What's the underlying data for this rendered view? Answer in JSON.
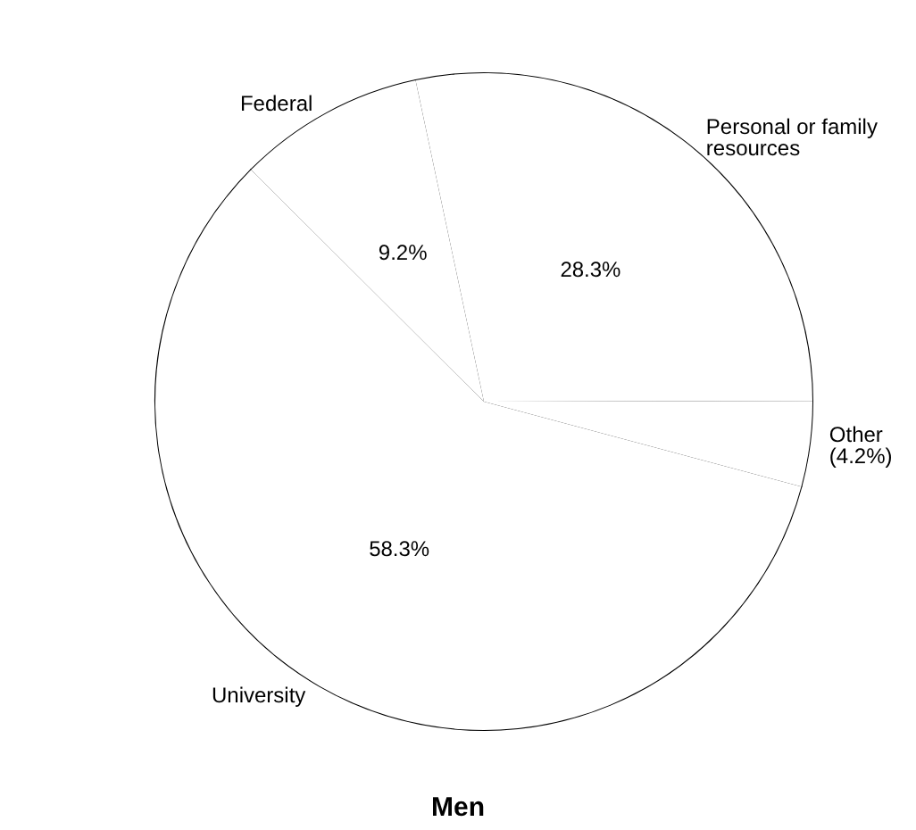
{
  "chart_data": {
    "type": "pie",
    "title": "Men",
    "categories": [
      "Personal or family resources",
      "Other",
      "University",
      "Federal"
    ],
    "values": [
      28.3,
      4.2,
      58.3,
      9.2
    ],
    "colors": [
      "#ffffff",
      "#ffffff",
      "#ffffff",
      "#ffffff"
    ],
    "value_labels": [
      "28.3%",
      "(4.2%)",
      "58.3%",
      "9.2%"
    ],
    "legend": false
  }
}
